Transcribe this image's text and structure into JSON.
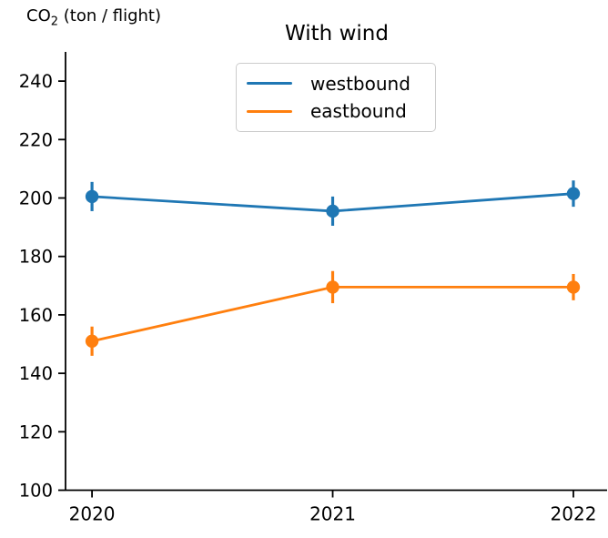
{
  "figure": {
    "ylabel_prefix": "CO",
    "ylabel_sub": "2",
    "ylabel_suffix": " (ton / flight)",
    "background_color": "#ffffff",
    "axis_color": "#000000",
    "legend_border_color": "#cccccc"
  },
  "chart_data": {
    "type": "line",
    "title": "With wind",
    "xlabel": "",
    "ylabel": "CO2 (ton / flight)",
    "x": [
      2020,
      2021,
      2022
    ],
    "x_tick_labels": [
      "2020",
      "2021",
      "2022"
    ],
    "y_ticks": [
      100,
      120,
      140,
      160,
      180,
      200,
      220,
      240
    ],
    "xlim": [
      2019.89,
      2022.14
    ],
    "ylim": [
      100,
      250
    ],
    "grid": false,
    "error_bars": true,
    "marker": "circle",
    "legend_position": "upper center",
    "series": [
      {
        "name": "westbound",
        "color": "#1f77b4",
        "values": [
          200.5,
          195.5,
          201.5
        ],
        "yerr": [
          5,
          5,
          4.5
        ]
      },
      {
        "name": "eastbound",
        "color": "#ff7f0e",
        "values": [
          151,
          169.5,
          169.5
        ],
        "yerr": [
          5,
          5.5,
          4.5
        ]
      }
    ]
  }
}
